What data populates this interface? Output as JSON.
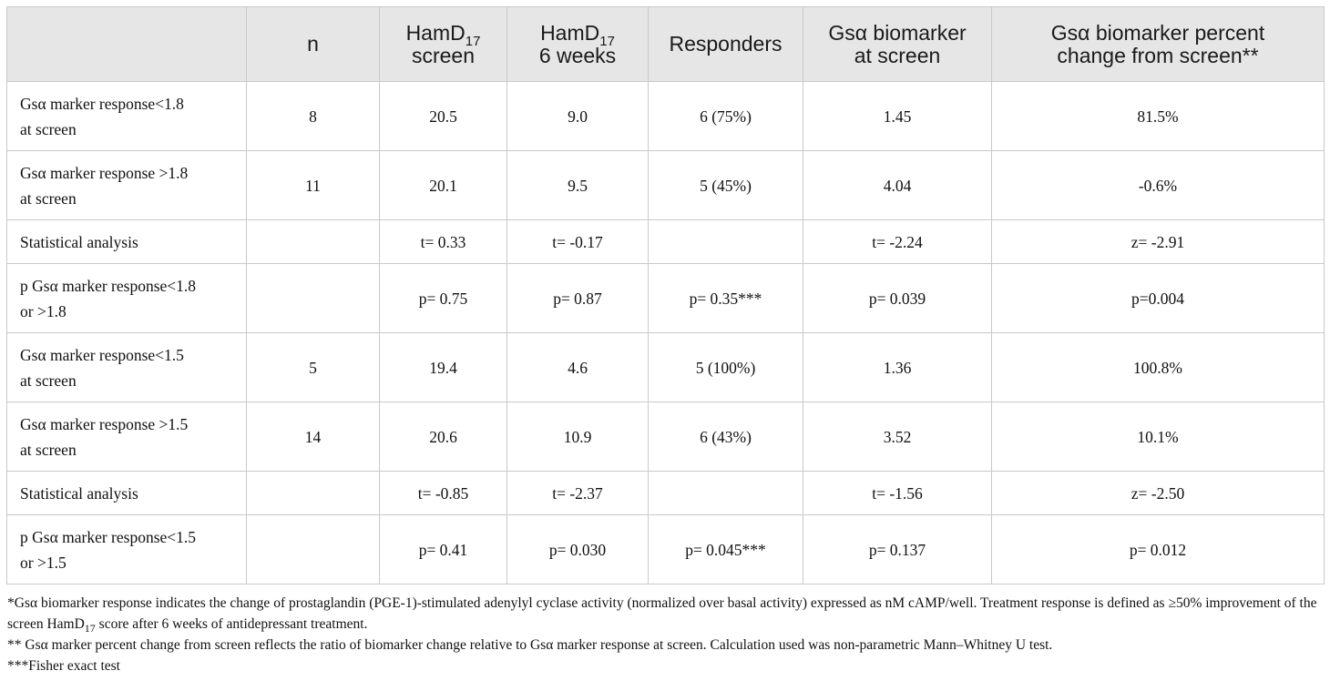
{
  "header": {
    "col0": "",
    "col1": "n",
    "col2_pre": "HamD",
    "col2_sub": "17",
    "col2_post": "screen",
    "col3_pre": "HamD",
    "col3_sub": "17",
    "col3_post": "6 weeks",
    "col4": "Responders",
    "col5_line1": "Gsα biomarker",
    "col5_line2": "at screen",
    "col6_line1": "Gsα biomarker percent",
    "col6_line2": "change from screen**"
  },
  "rows": [
    {
      "label1": "Gsα marker response<1.8",
      "label2": "at screen",
      "n": "8",
      "hs": "20.5",
      "h6": "9.0",
      "resp": "6 (75%)",
      "bio": "1.45",
      "pct": "81.5%"
    },
    {
      "label1": "Gsα marker response >1.8",
      "label2": "at screen",
      "n": "11",
      "hs": "20.1",
      "h6": "9.5",
      "resp": "5 (45%)",
      "bio": "4.04",
      "pct": "-0.6%"
    },
    {
      "label1": "Statistical analysis",
      "label2": "",
      "n": "",
      "hs": "t= 0.33",
      "h6": "t= -0.17",
      "resp": "",
      "bio": "t= -2.24",
      "pct": "z= -2.91"
    },
    {
      "label1": "p Gsα marker response<1.8",
      "label2": "or >1.8",
      "n": "",
      "hs": "p= 0.75",
      "h6": "p= 0.87",
      "resp": "p= 0.35***",
      "bio": "p= 0.039",
      "pct": "p=0.004"
    },
    {
      "label1": "Gsα marker response<1.5",
      "label2": "at screen",
      "n": "5",
      "hs": "19.4",
      "h6": "4.6",
      "resp": "5 (100%)",
      "bio": "1.36",
      "pct": "100.8%"
    },
    {
      "label1": "Gsα marker response >1.5",
      "label2": "at screen",
      "n": "14",
      "hs": "20.6",
      "h6": "10.9",
      "resp": "6 (43%)",
      "bio": "3.52",
      "pct": "10.1%"
    },
    {
      "label1": "Statistical analysis",
      "label2": "",
      "n": "",
      "hs": "t= -0.85",
      "h6": "t= -2.37",
      "resp": "",
      "bio": "t= -1.56",
      "pct": "z= -2.50"
    },
    {
      "label1": "p Gsα marker response<1.5",
      "label2": "or >1.5",
      "n": "",
      "hs": "p= 0.41",
      "h6": "p= 0.030",
      "resp": "p= 0.045***",
      "bio": "p= 0.137",
      "pct": "p= 0.012"
    }
  ],
  "footnotes": {
    "note1_a": "*Gsα biomarker response indicates the change of prostaglandin (PGE-1)-stimulated adenylyl cyclase activity (normalized over basal activity) expressed as nM cAMP/well. Treatment response is defined as ≥50% improvement of the screen HamD",
    "note1_sub": "17",
    "note1_b": " score after 6 weeks of antidepressant treatment.",
    "note2": "** Gsα marker percent change from screen reflects the ratio of biomarker change relative to Gsα marker response at screen. Calculation used was non-parametric Mann–Whitney U test.",
    "note3": "***Fisher exact test"
  }
}
